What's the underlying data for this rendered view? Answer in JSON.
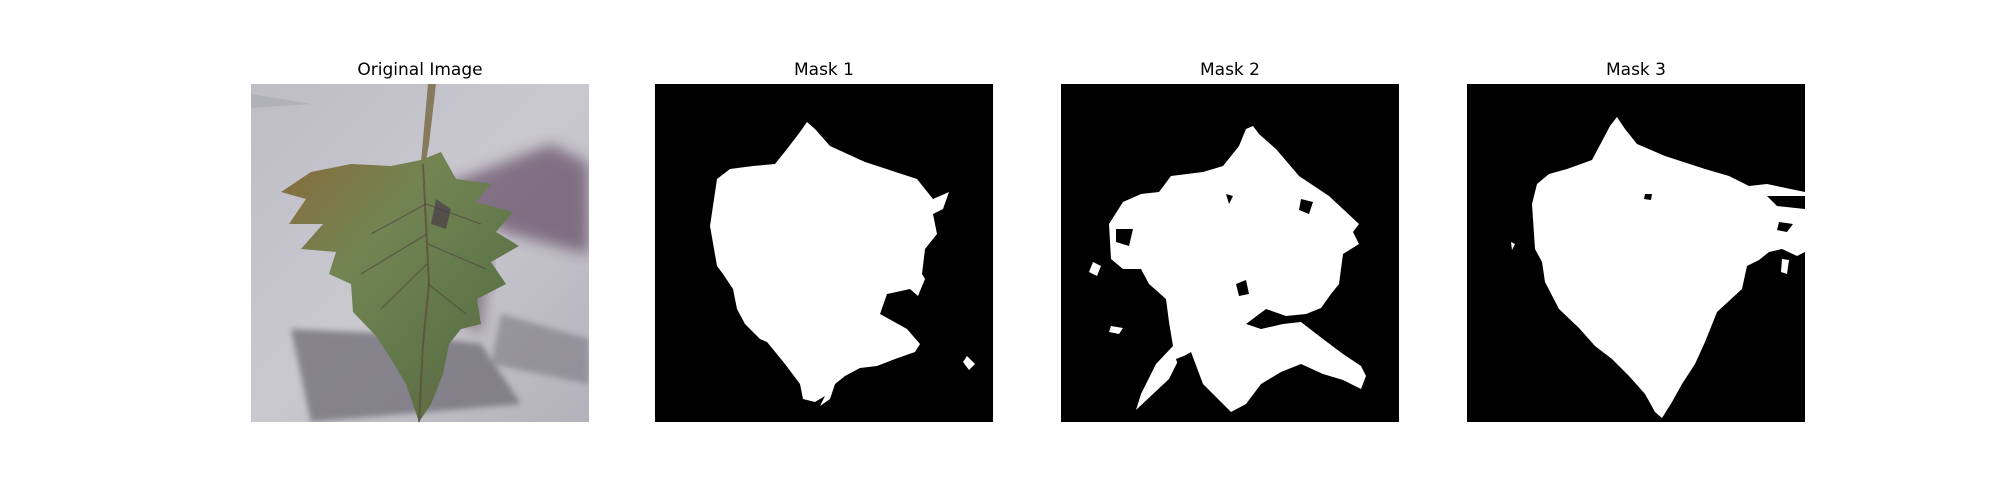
{
  "figure": {
    "panels": [
      {
        "title": "Original Image"
      },
      {
        "title": "Mask 1"
      },
      {
        "title": "Mask 2"
      },
      {
        "title": "Mask 3"
      }
    ]
  },
  "colors": {
    "background": "#ffffff",
    "mask_background": "#000000",
    "mask_foreground": "#ffffff",
    "photo_background": "#c2c1c8",
    "leaf_green": "#6f7d4e",
    "leaf_brown": "#7a5a3c",
    "shadow": "#76737d"
  }
}
